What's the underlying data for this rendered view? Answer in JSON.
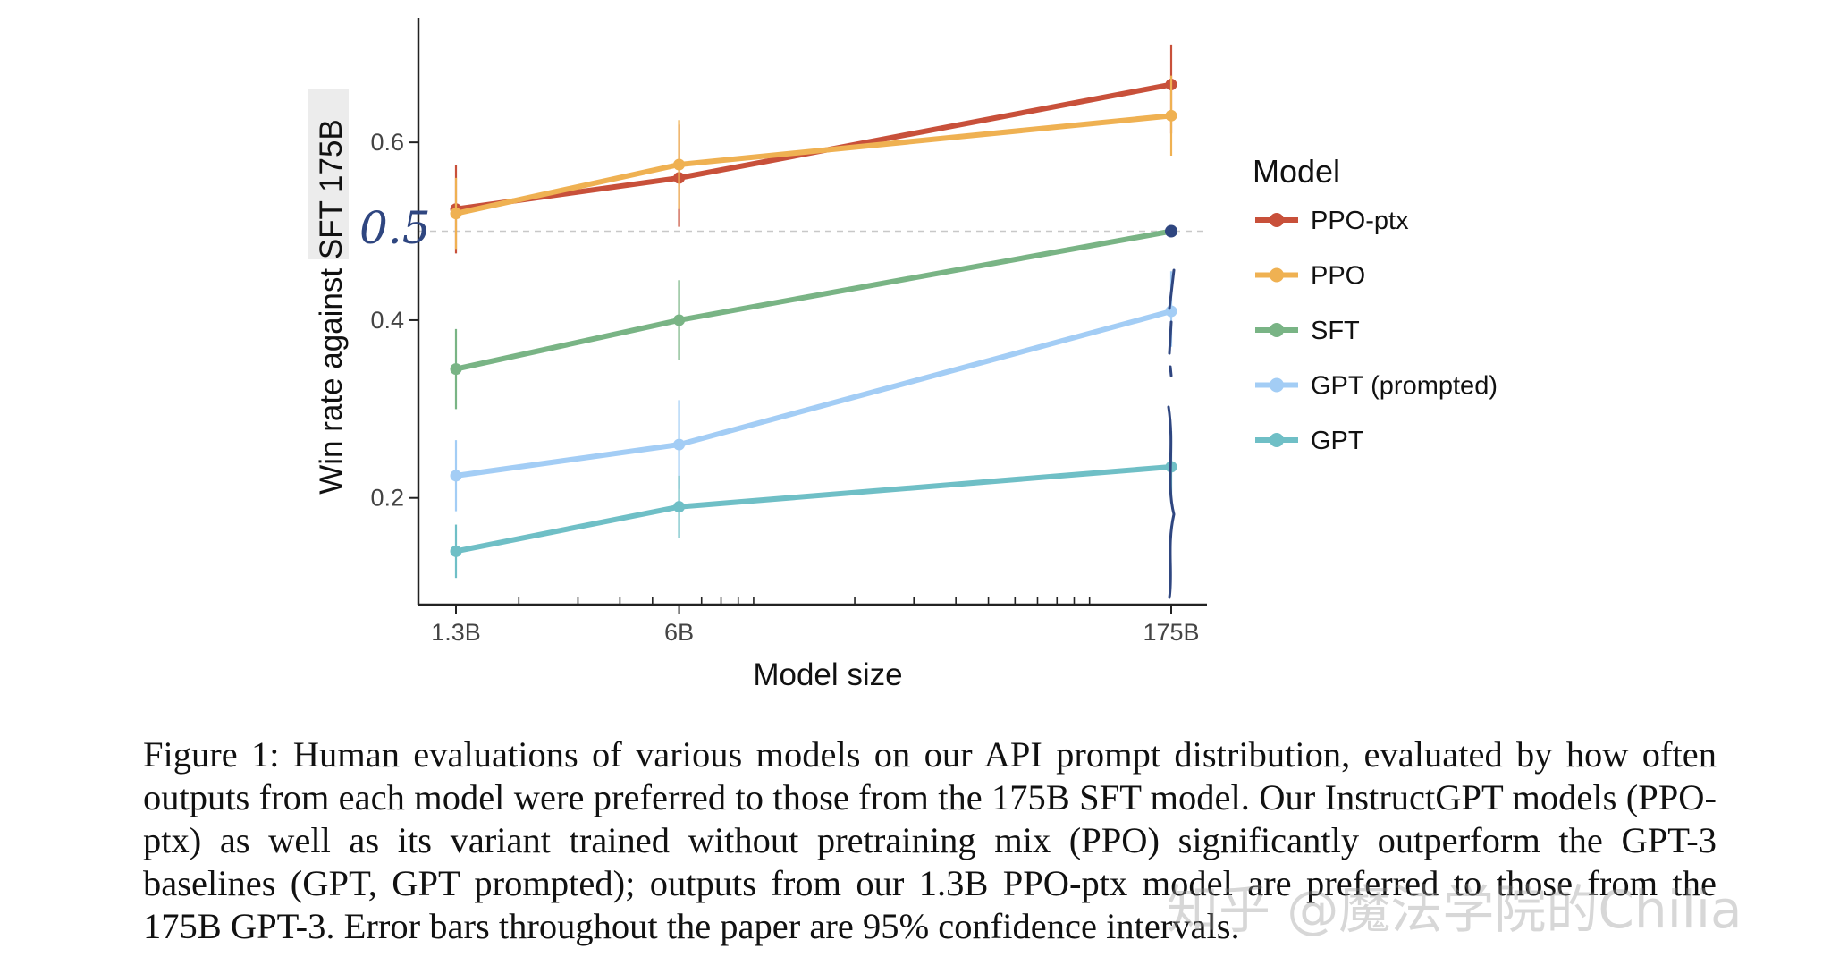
{
  "chart_data": {
    "type": "line",
    "title": "",
    "xlabel": "Model size",
    "ylabel": "Win rate against SFT 175B",
    "x_scale": "log",
    "categories": [
      "1.3B",
      "6B",
      "175B"
    ],
    "x_values": [
      1.3,
      6,
      175
    ],
    "ylim": [
      0.08,
      0.74
    ],
    "yticks": [
      0.2,
      0.4,
      0.6
    ],
    "ytick_labels": [
      "0.2",
      "0.4",
      "0.6"
    ],
    "reference_line": 0.5,
    "legend_title": "Model",
    "legend_position": "right",
    "series": [
      {
        "name": "PPO-ptx",
        "color": "#c8503a",
        "values": [
          0.525,
          0.56,
          0.665
        ],
        "ci": [
          [
            0.475,
            0.575
          ],
          [
            0.505,
            0.62
          ],
          [
            0.61,
            0.71
          ]
        ]
      },
      {
        "name": "PPO",
        "color": "#efb152",
        "values": [
          0.52,
          0.575,
          0.63
        ],
        "ci": [
          [
            0.48,
            0.56
          ],
          [
            0.525,
            0.625
          ],
          [
            0.585,
            0.675
          ]
        ]
      },
      {
        "name": "SFT",
        "color": "#79b485",
        "values": [
          0.345,
          0.4,
          0.5
        ],
        "ci": [
          [
            0.3,
            0.39
          ],
          [
            0.355,
            0.445
          ],
          [
            0.5,
            0.5
          ]
        ]
      },
      {
        "name": "GPT (prompted)",
        "color": "#a3cdf5",
        "values": [
          0.225,
          0.26,
          0.41
        ],
        "ci": [
          [
            0.185,
            0.265
          ],
          [
            0.21,
            0.31
          ],
          [
            0.37,
            0.455
          ]
        ]
      },
      {
        "name": "GPT",
        "color": "#6fbfc6",
        "values": [
          0.14,
          0.19,
          0.235
        ],
        "ci": [
          [
            0.11,
            0.17
          ],
          [
            0.155,
            0.225
          ],
          [
            0.195,
            0.275
          ]
        ]
      }
    ]
  },
  "annotations": {
    "handwritten_value": "0.5"
  },
  "caption": "Figure 1: Human evaluations of various models on our API prompt distribution, evaluated by how often outputs from each model were preferred to those from the 175B SFT model. Our InstructGPT models (PPO-ptx) as well as its variant trained without pretraining mix (PPO) significantly outperform the GPT-3 baselines (GPT, GPT prompted); outputs from our 1.3B PPO-ptx model are preferred to those from the 175B GPT-3. Error bars throughout the paper are 95% confidence intervals.",
  "watermark": "知乎 @魔法学院的Chilia"
}
